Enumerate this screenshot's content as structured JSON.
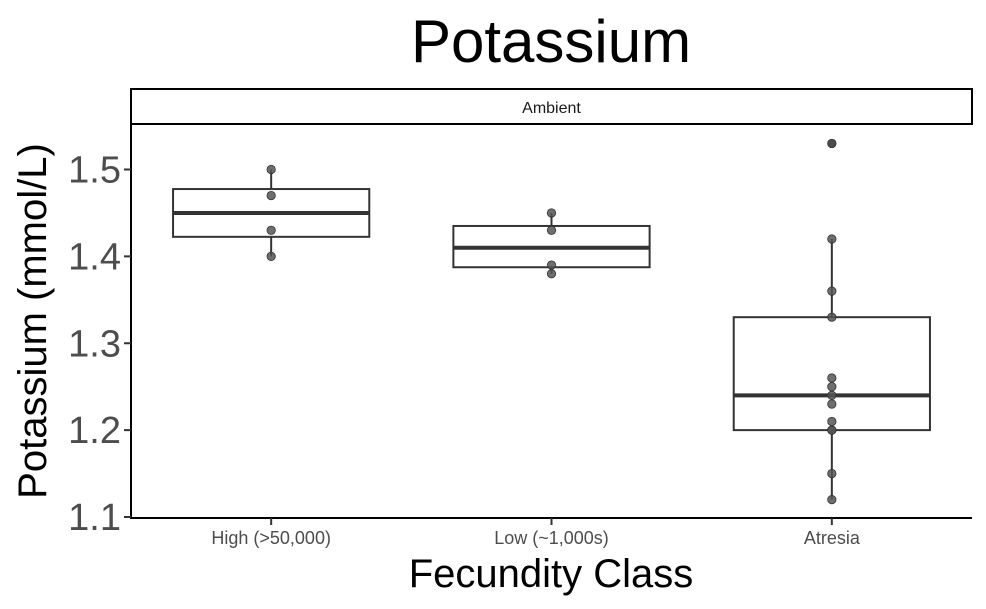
{
  "chart_data": {
    "type": "box",
    "title": "Potassium",
    "facet": "Ambient",
    "xlabel": "Fecundity Class",
    "ylabel": "Potassium (mmol/L)",
    "categories": [
      "High (>50,000)",
      "Low (~1,000s)",
      "Atresia"
    ],
    "ylim": [
      1.1,
      1.55
    ],
    "yticks": [
      1.1,
      1.2,
      1.3,
      1.4,
      1.5
    ],
    "ytick_labels": [
      "1.1",
      "1.2",
      "1.3",
      "1.4",
      "1.5"
    ],
    "grid": false,
    "boxes": [
      {
        "category": "High (>50,000)",
        "whisker_low": 1.4,
        "q1": 1.4225,
        "median": 1.45,
        "q3": 1.4775,
        "whisker_high": 1.5
      },
      {
        "category": "Low (~1,000s)",
        "whisker_low": 1.38,
        "q1": 1.3875,
        "median": 1.41,
        "q3": 1.435,
        "whisker_high": 1.45
      },
      {
        "category": "Atresia",
        "whisker_low": 1.12,
        "q1": 1.2,
        "median": 1.24,
        "q3": 1.33,
        "whisker_high": 1.42
      }
    ],
    "points": [
      {
        "category": "High (>50,000)",
        "values": [
          1.4,
          1.43,
          1.47,
          1.5
        ]
      },
      {
        "category": "Low (~1,000s)",
        "values": [
          1.38,
          1.39,
          1.43,
          1.45
        ]
      },
      {
        "category": "Atresia",
        "values": [
          1.12,
          1.15,
          1.2,
          1.2,
          1.21,
          1.23,
          1.24,
          1.25,
          1.26,
          1.33,
          1.36,
          1.42,
          1.53
        ]
      }
    ],
    "outliers": [
      {
        "category": "Atresia",
        "value": 1.53
      }
    ],
    "colors": {
      "box_line": "#333333",
      "point_fill": "#555555",
      "outlier": "#222222"
    }
  }
}
